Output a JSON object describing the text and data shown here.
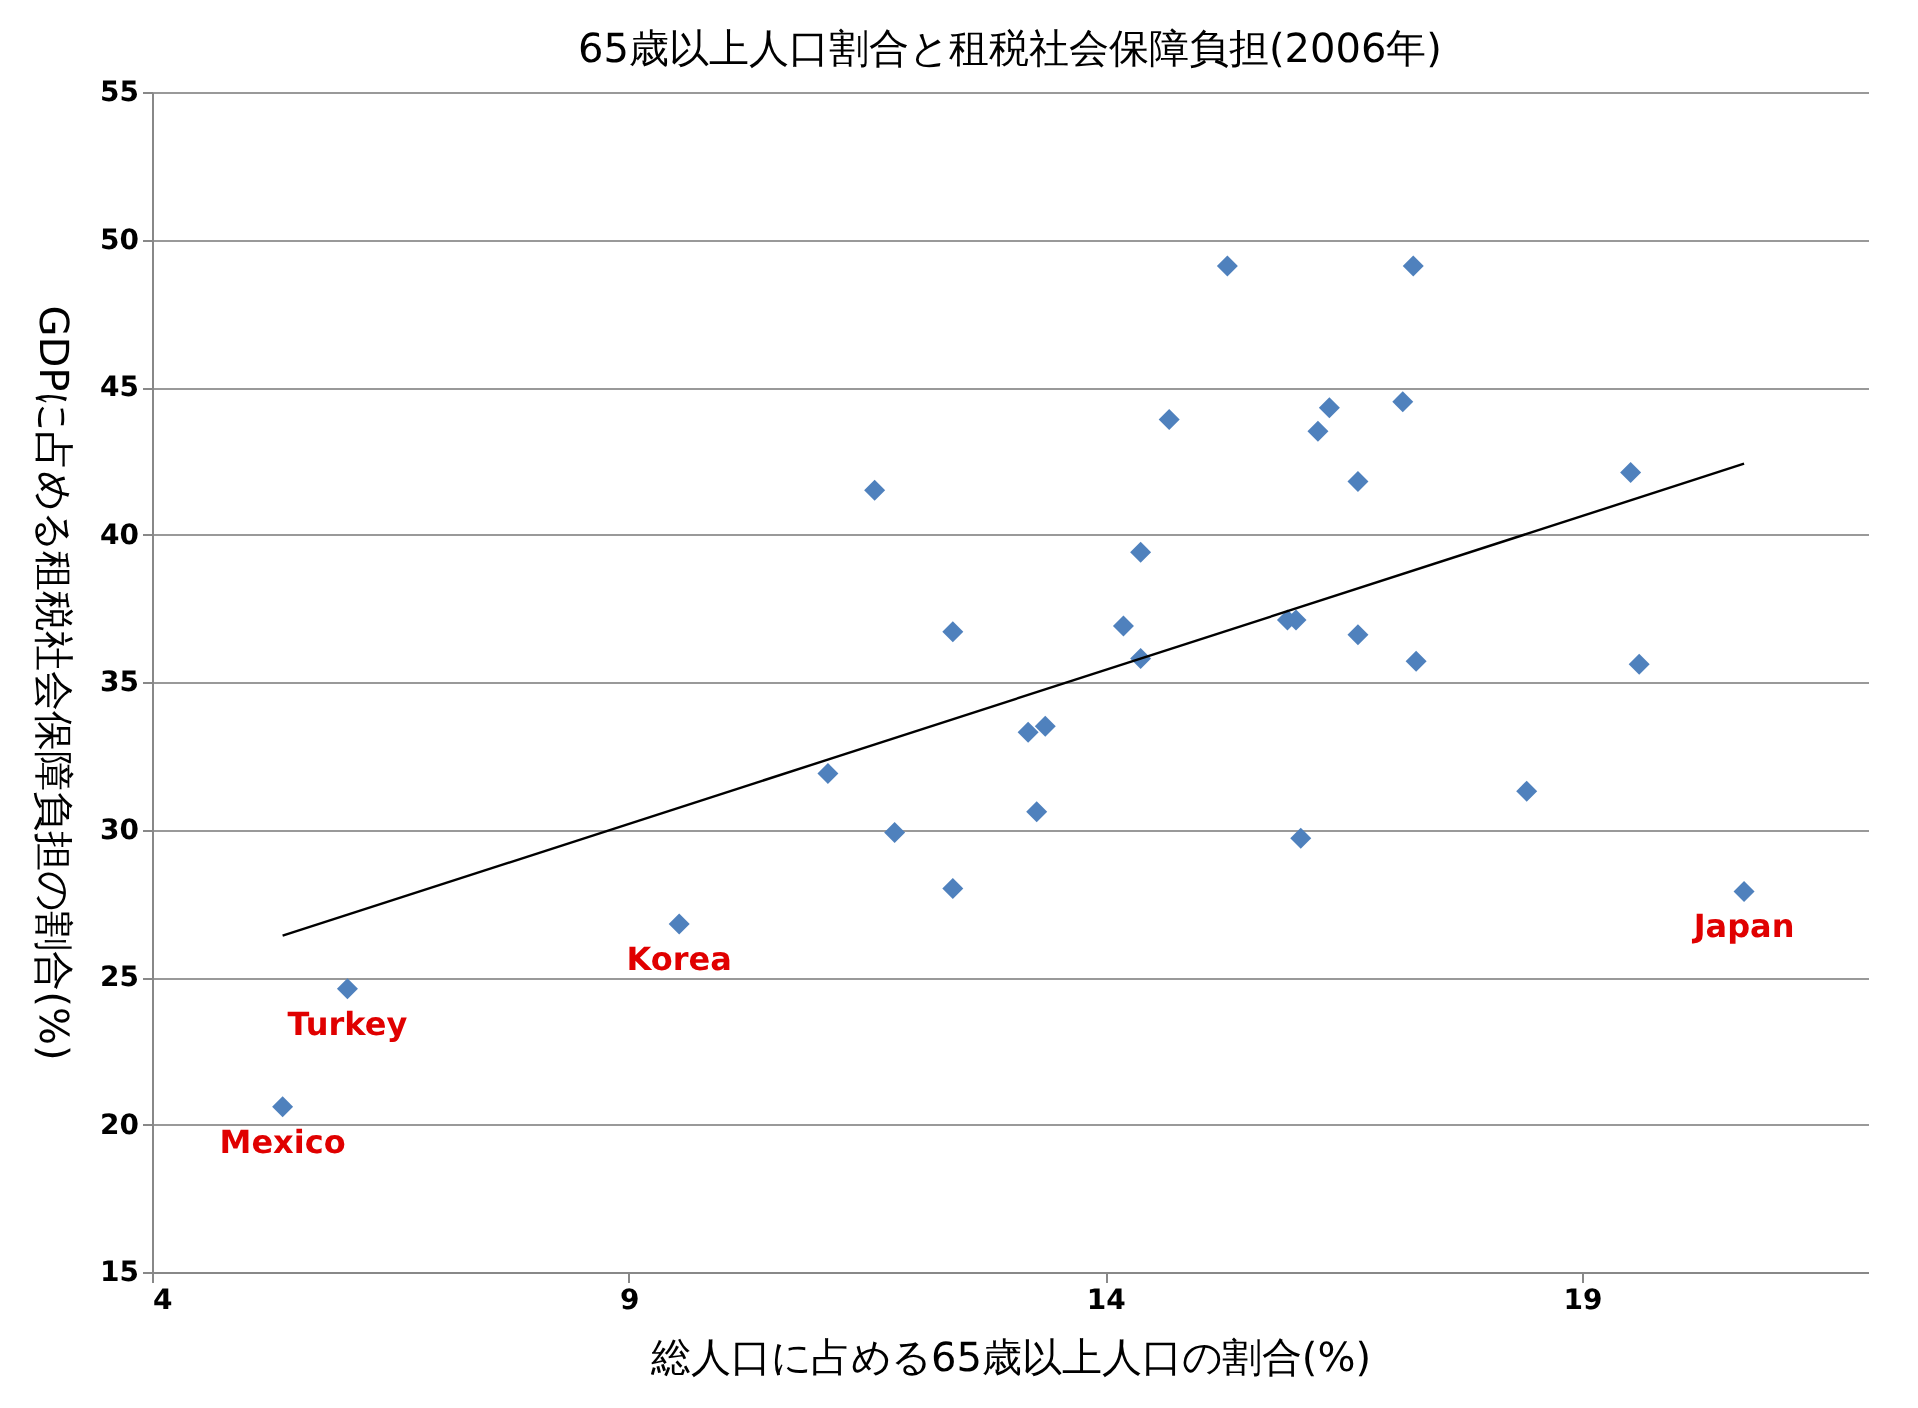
{
  "chart_data": {
    "type": "scatter",
    "title": "65歳以上人口割合と租税社会保障負担(2006年)",
    "xlabel": "総人口に占める65歳以上人口の割合(%)",
    "ylabel": "GDPに占める租税社会保障負担の割合(%)",
    "xlim": [
      4,
      22
    ],
    "xticks": [
      4,
      9,
      14,
      19
    ],
    "ylim": [
      15,
      55
    ],
    "yticks": [
      15,
      20,
      25,
      30,
      35,
      40,
      45,
      50,
      55
    ],
    "grid": "y",
    "marker": "diamond",
    "series": [
      {
        "color": "#4f81bd",
        "x": [
          5.37,
          6.05,
          9.53,
          11.09,
          11.58,
          11.79,
          12.4,
          12.4,
          13.19,
          13.37,
          13.28,
          14.19,
          14.37,
          14.37,
          14.67,
          15.28,
          15.91,
          16.0,
          16.05,
          16.23,
          16.35,
          16.65,
          16.65,
          17.12,
          17.23,
          17.26,
          18.42,
          19.51,
          19.6,
          20.7
        ],
        "values": [
          20.6,
          24.6,
          26.8,
          31.9,
          41.5,
          29.9,
          36.7,
          28.0,
          33.3,
          33.5,
          30.6,
          36.9,
          39.4,
          35.8,
          43.9,
          49.1,
          37.1,
          37.1,
          29.7,
          43.5,
          44.3,
          41.8,
          36.6,
          44.5,
          49.1,
          35.7,
          31.3,
          42.1,
          35.6,
          27.9
        ]
      },
      {
        "type": "line",
        "color": "#000000",
        "x": [
          5.37,
          20.7
        ],
        "values": [
          26.4,
          42.4
        ],
        "line_style": "solid",
        "marker": "none"
      }
    ],
    "annotations": [
      {
        "text": "Mexico",
        "x": 5.37,
        "y": 20.6
      },
      {
        "text": "Turkey",
        "x": 6.05,
        "y": 24.6
      },
      {
        "text": "Korea",
        "x": 9.53,
        "y": 26.8
      },
      {
        "text": "Japan",
        "x": 20.7,
        "y": 27.9
      }
    ]
  }
}
